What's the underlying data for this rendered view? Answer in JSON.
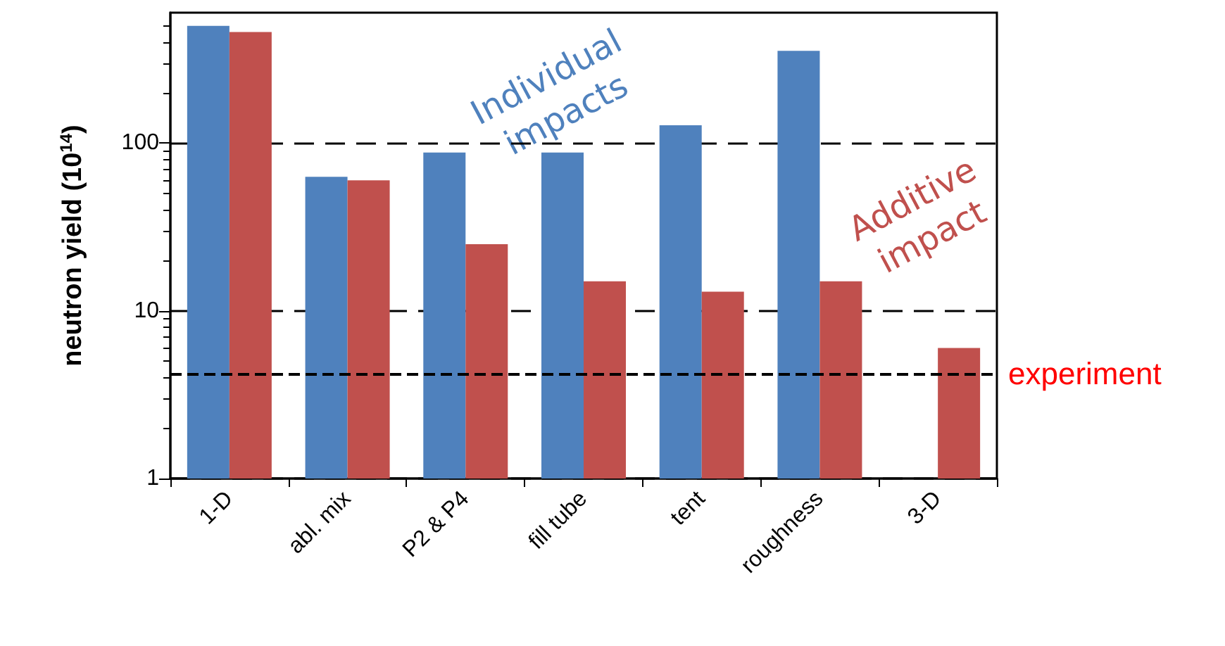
{
  "chart_data": {
    "type": "bar",
    "ylabel": "neutron yield (10$^{14}$)",
    "categories": [
      "1-D",
      "abl. mix",
      "P2 & P4",
      "fill tube",
      "tent",
      "roughness",
      "3-D"
    ],
    "series": [
      {
        "name": "Individual impacts",
        "color": "#4f81bd",
        "values": [
          500,
          63,
          88,
          88,
          128,
          355,
          null
        ]
      },
      {
        "name": "Additive impact",
        "color": "#c0504d",
        "values": [
          460,
          60,
          25,
          15,
          13,
          15,
          6
        ]
      }
    ],
    "log": true,
    "ylim": [
      1,
      600
    ],
    "yticks": [
      1,
      10,
      100
    ],
    "grid": "y",
    "legend": false,
    "ref_lines": [
      {
        "axis": "y",
        "value": 4.2,
        "label": "experiment",
        "color": "#000000",
        "line_style": "dashed"
      }
    ]
  }
}
